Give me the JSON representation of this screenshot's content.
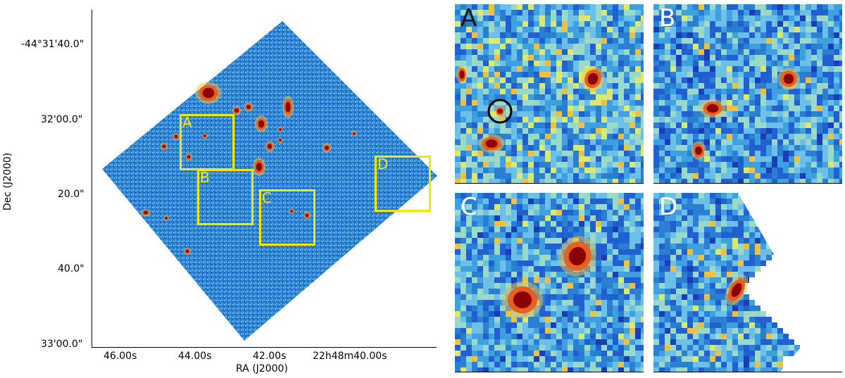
{
  "main_image": {
    "y_axis_title": "Dec (J2000)",
    "x_axis_title": "RA (J2000)",
    "y_ticks": [
      "-44°31'40.0\"",
      "32'00.0\"",
      "20.0\"",
      "40.0\"",
      "33'00.0\""
    ],
    "x_ticks": [
      "46.00s",
      "44.00s",
      "42.00s",
      "22h48m40.00s"
    ],
    "boxes": [
      "A",
      "B",
      "C",
      "D"
    ],
    "box_color": "#f5e600",
    "colormap": "jet"
  },
  "panels": [
    {
      "label": "A"
    },
    {
      "label": "B"
    },
    {
      "label": "C"
    },
    {
      "label": "D"
    }
  ]
}
